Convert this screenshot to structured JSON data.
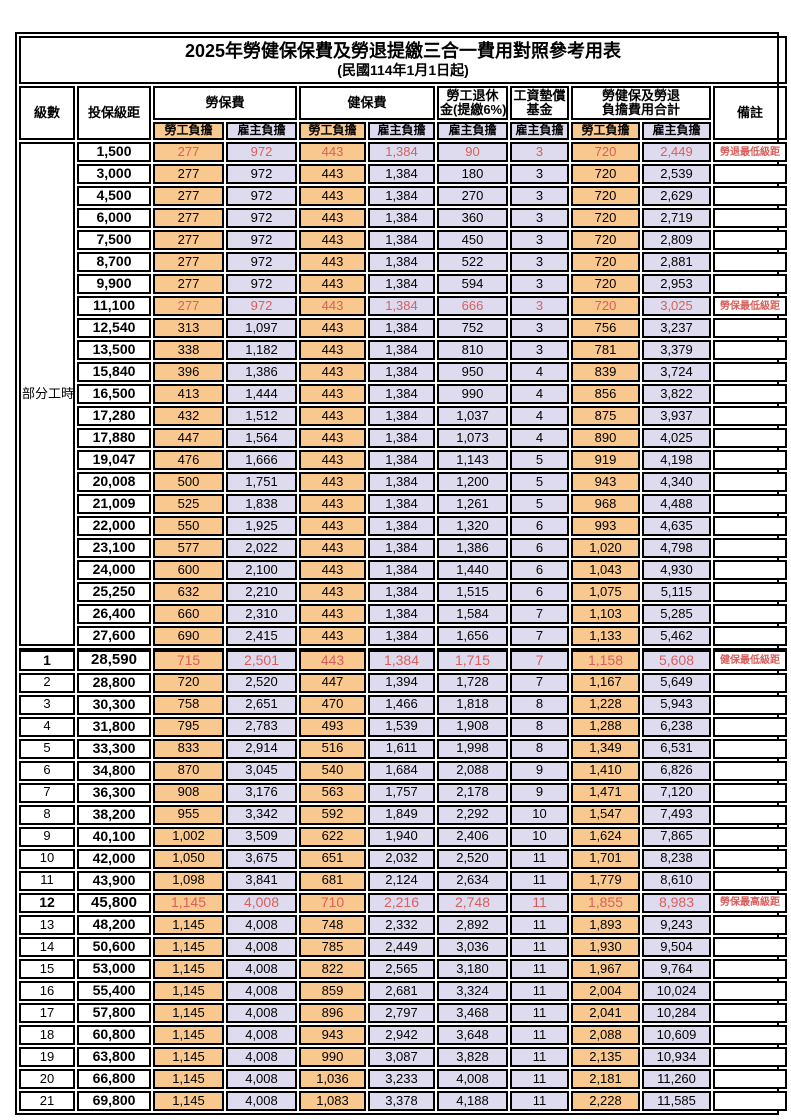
{
  "title": "2025年勞健保保費及勞退提繳三合一費用對照參考用表",
  "subtitle": "(民國114年1月1日起)",
  "colors": {
    "employee_bg": "#F9C88F",
    "employer_bg": "#DEDBEE",
    "red_text": "#D85F5C"
  },
  "header": {
    "level": "級數",
    "bracket": "投保級距",
    "labor_ins": "勞保費",
    "health_ins": "健保費",
    "pension_l1": "勞工退休",
    "pension_l2": "金(提繳6%)",
    "wage_fund_l1": "工資墊償",
    "wage_fund_l2": "基金",
    "total_l1": "勞健保及勞退",
    "total_l2": "負擔費用合計",
    "remark": "備註",
    "employee": "勞工負擔",
    "employer": "雇主負擔"
  },
  "table": {
    "rows": [
      {
        "lv": "部分工時",
        "lvspan": 23,
        "b": "1,500",
        "v": [
          "277",
          "972",
          "443",
          "1,384",
          "90",
          "3",
          "720",
          "2,449"
        ],
        "r": "勞退最低級距",
        "red": true
      },
      {
        "lv": null,
        "b": "3,000",
        "v": [
          "277",
          "972",
          "443",
          "1,384",
          "180",
          "3",
          "720",
          "2,539"
        ],
        "r": ""
      },
      {
        "lv": null,
        "b": "4,500",
        "v": [
          "277",
          "972",
          "443",
          "1,384",
          "270",
          "3",
          "720",
          "2,629"
        ],
        "r": ""
      },
      {
        "lv": null,
        "b": "6,000",
        "v": [
          "277",
          "972",
          "443",
          "1,384",
          "360",
          "3",
          "720",
          "2,719"
        ],
        "r": ""
      },
      {
        "lv": null,
        "b": "7,500",
        "v": [
          "277",
          "972",
          "443",
          "1,384",
          "450",
          "3",
          "720",
          "2,809"
        ],
        "r": ""
      },
      {
        "lv": null,
        "b": "8,700",
        "v": [
          "277",
          "972",
          "443",
          "1,384",
          "522",
          "3",
          "720",
          "2,881"
        ],
        "r": ""
      },
      {
        "lv": null,
        "b": "9,900",
        "v": [
          "277",
          "972",
          "443",
          "1,384",
          "594",
          "3",
          "720",
          "2,953"
        ],
        "r": ""
      },
      {
        "lv": null,
        "b": "11,100",
        "v": [
          "277",
          "972",
          "443",
          "1,384",
          "666",
          "3",
          "720",
          "3,025"
        ],
        "r": "勞保最低級距",
        "red": true
      },
      {
        "lv": null,
        "b": "12,540",
        "v": [
          "313",
          "1,097",
          "443",
          "1,384",
          "752",
          "3",
          "756",
          "3,237"
        ],
        "r": ""
      },
      {
        "lv": null,
        "b": "13,500",
        "v": [
          "338",
          "1,182",
          "443",
          "1,384",
          "810",
          "3",
          "781",
          "3,379"
        ],
        "r": ""
      },
      {
        "lv": null,
        "b": "15,840",
        "v": [
          "396",
          "1,386",
          "443",
          "1,384",
          "950",
          "4",
          "839",
          "3,724"
        ],
        "r": ""
      },
      {
        "lv": null,
        "b": "16,500",
        "v": [
          "413",
          "1,444",
          "443",
          "1,384",
          "990",
          "4",
          "856",
          "3,822"
        ],
        "r": ""
      },
      {
        "lv": null,
        "b": "17,280",
        "v": [
          "432",
          "1,512",
          "443",
          "1,384",
          "1,037",
          "4",
          "875",
          "3,937"
        ],
        "r": ""
      },
      {
        "lv": null,
        "b": "17,880",
        "v": [
          "447",
          "1,564",
          "443",
          "1,384",
          "1,073",
          "4",
          "890",
          "4,025"
        ],
        "r": ""
      },
      {
        "lv": null,
        "b": "19,047",
        "v": [
          "476",
          "1,666",
          "443",
          "1,384",
          "1,143",
          "5",
          "919",
          "4,198"
        ],
        "r": ""
      },
      {
        "lv": null,
        "b": "20,008",
        "v": [
          "500",
          "1,751",
          "443",
          "1,384",
          "1,200",
          "5",
          "943",
          "4,340"
        ],
        "r": ""
      },
      {
        "lv": null,
        "b": "21,009",
        "v": [
          "525",
          "1,838",
          "443",
          "1,384",
          "1,261",
          "5",
          "968",
          "4,488"
        ],
        "r": ""
      },
      {
        "lv": null,
        "b": "22,000",
        "v": [
          "550",
          "1,925",
          "443",
          "1,384",
          "1,320",
          "6",
          "993",
          "4,635"
        ],
        "r": ""
      },
      {
        "lv": null,
        "b": "23,100",
        "v": [
          "577",
          "2,022",
          "443",
          "1,384",
          "1,386",
          "6",
          "1,020",
          "4,798"
        ],
        "r": ""
      },
      {
        "lv": null,
        "b": "24,000",
        "v": [
          "600",
          "2,100",
          "443",
          "1,384",
          "1,440",
          "6",
          "1,043",
          "4,930"
        ],
        "r": ""
      },
      {
        "lv": null,
        "b": "25,250",
        "v": [
          "632",
          "2,210",
          "443",
          "1,384",
          "1,515",
          "6",
          "1,075",
          "5,115"
        ],
        "r": ""
      },
      {
        "lv": null,
        "b": "26,400",
        "v": [
          "660",
          "2,310",
          "443",
          "1,384",
          "1,584",
          "7",
          "1,103",
          "5,285"
        ],
        "r": ""
      },
      {
        "lv": null,
        "b": "27,600",
        "v": [
          "690",
          "2,415",
          "443",
          "1,384",
          "1,656",
          "7",
          "1,133",
          "5,462"
        ],
        "r": ""
      },
      {
        "lv": "1",
        "b": "28,590",
        "v": [
          "715",
          "2,501",
          "443",
          "1,384",
          "1,715",
          "7",
          "1,158",
          "5,608"
        ],
        "r": "健保最低級距",
        "red": true,
        "bold": true,
        "thick": true
      },
      {
        "lv": "2",
        "b": "28,800",
        "v": [
          "720",
          "2,520",
          "447",
          "1,394",
          "1,728",
          "7",
          "1,167",
          "5,649"
        ],
        "r": ""
      },
      {
        "lv": "3",
        "b": "30,300",
        "v": [
          "758",
          "2,651",
          "470",
          "1,466",
          "1,818",
          "8",
          "1,228",
          "5,943"
        ],
        "r": ""
      },
      {
        "lv": "4",
        "b": "31,800",
        "v": [
          "795",
          "2,783",
          "493",
          "1,539",
          "1,908",
          "8",
          "1,288",
          "6,238"
        ],
        "r": ""
      },
      {
        "lv": "5",
        "b": "33,300",
        "v": [
          "833",
          "2,914",
          "516",
          "1,611",
          "1,998",
          "8",
          "1,349",
          "6,531"
        ],
        "r": ""
      },
      {
        "lv": "6",
        "b": "34,800",
        "v": [
          "870",
          "3,045",
          "540",
          "1,684",
          "2,088",
          "9",
          "1,410",
          "6,826"
        ],
        "r": ""
      },
      {
        "lv": "7",
        "b": "36,300",
        "v": [
          "908",
          "3,176",
          "563",
          "1,757",
          "2,178",
          "9",
          "1,471",
          "7,120"
        ],
        "r": ""
      },
      {
        "lv": "8",
        "b": "38,200",
        "v": [
          "955",
          "3,342",
          "592",
          "1,849",
          "2,292",
          "10",
          "1,547",
          "7,493"
        ],
        "r": ""
      },
      {
        "lv": "9",
        "b": "40,100",
        "v": [
          "1,002",
          "3,509",
          "622",
          "1,940",
          "2,406",
          "10",
          "1,624",
          "7,865"
        ],
        "r": ""
      },
      {
        "lv": "10",
        "b": "42,000",
        "v": [
          "1,050",
          "3,675",
          "651",
          "2,032",
          "2,520",
          "11",
          "1,701",
          "8,238"
        ],
        "r": ""
      },
      {
        "lv": "11",
        "b": "43,900",
        "v": [
          "1,098",
          "3,841",
          "681",
          "2,124",
          "2,634",
          "11",
          "1,779",
          "8,610"
        ],
        "r": ""
      },
      {
        "lv": "12",
        "b": "45,800",
        "v": [
          "1,145",
          "4,008",
          "710",
          "2,216",
          "2,748",
          "11",
          "1,855",
          "8,983"
        ],
        "r": "勞保最高級距",
        "red": true,
        "bold": true
      },
      {
        "lv": "13",
        "b": "48,200",
        "v": [
          "1,145",
          "4,008",
          "748",
          "2,332",
          "2,892",
          "11",
          "1,893",
          "9,243"
        ],
        "r": ""
      },
      {
        "lv": "14",
        "b": "50,600",
        "v": [
          "1,145",
          "4,008",
          "785",
          "2,449",
          "3,036",
          "11",
          "1,930",
          "9,504"
        ],
        "r": ""
      },
      {
        "lv": "15",
        "b": "53,000",
        "v": [
          "1,145",
          "4,008",
          "822",
          "2,565",
          "3,180",
          "11",
          "1,967",
          "9,764"
        ],
        "r": ""
      },
      {
        "lv": "16",
        "b": "55,400",
        "v": [
          "1,145",
          "4,008",
          "859",
          "2,681",
          "3,324",
          "11",
          "2,004",
          "10,024"
        ],
        "r": ""
      },
      {
        "lv": "17",
        "b": "57,800",
        "v": [
          "1,145",
          "4,008",
          "896",
          "2,797",
          "3,468",
          "11",
          "2,041",
          "10,284"
        ],
        "r": ""
      },
      {
        "lv": "18",
        "b": "60,800",
        "v": [
          "1,145",
          "4,008",
          "943",
          "2,942",
          "3,648",
          "11",
          "2,088",
          "10,609"
        ],
        "r": ""
      },
      {
        "lv": "19",
        "b": "63,800",
        "v": [
          "1,145",
          "4,008",
          "990",
          "3,087",
          "3,828",
          "11",
          "2,135",
          "10,934"
        ],
        "r": ""
      },
      {
        "lv": "20",
        "b": "66,800",
        "v": [
          "1,145",
          "4,008",
          "1,036",
          "3,233",
          "4,008",
          "11",
          "2,181",
          "11,260"
        ],
        "r": ""
      },
      {
        "lv": "21",
        "b": "69,800",
        "v": [
          "1,145",
          "4,008",
          "1,083",
          "3,378",
          "4,188",
          "11",
          "2,228",
          "11,585"
        ],
        "r": ""
      }
    ]
  }
}
